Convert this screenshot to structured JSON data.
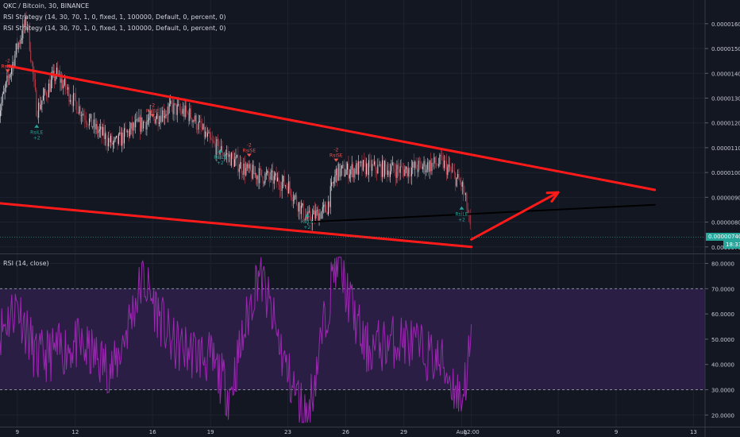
{
  "header": {
    "title": "QKC / Bitcoin, 30, BINANCE",
    "strategy_1": "RSI Strategy (14, 30, 70, 1, 0, fixed, 1, 100000, Default, 0, percent, 0)",
    "strategy_2": "RSI Strategy (14, 30, 70, 1, 0, fixed, 1, 100000, Default, 0, percent, 0)"
  },
  "price_axis": {
    "ticks": [
      "0.00001600",
      "0.00001500",
      "0.00001400",
      "0.00001300",
      "0.00001200",
      "0.00001100",
      "0.00001000",
      "0.00000900",
      "0.00000800",
      "0.00000700"
    ],
    "current_price": "0.00000740",
    "countdown": "18:33"
  },
  "rsi_panel": {
    "title": "RSI (14, close)",
    "ticks": [
      "80.0000",
      "70.0000",
      "60.0000",
      "50.0000",
      "40.0000",
      "30.0000",
      "20.0000"
    ]
  },
  "time_axis": {
    "ticks": [
      "9",
      "12",
      "16",
      "19",
      "23",
      "26",
      "29",
      "Aug",
      "12:00",
      "6",
      "9",
      "13"
    ]
  },
  "markers": {
    "short_label": "RsiSE",
    "long_label": "RsiLE",
    "short_qty": "-2",
    "long_qty": "+2"
  },
  "colors": {
    "background": "#131722",
    "candle_up": "#d9dbe0",
    "candle_down": "#c23b4a",
    "trendline": "#ff1a1a",
    "support_line": "#000000",
    "rsi_line": "#9b27b0",
    "rsi_band": "#2a1e45",
    "long_marker": "#26a69a",
    "short_marker": "#ef5350",
    "price_tag": "#26a69a"
  },
  "chart_data": [
    {
      "type": "candlestick",
      "title": "QKC / Bitcoin, 30, BINANCE",
      "y_unit": "BTC",
      "ylim": [
        6.8e-06,
        1.67e-05
      ],
      "x_range": [
        "Jul 8",
        "Aug 13"
      ],
      "price_path": [
        {
          "x": "Jul 8",
          "y": 1.23e-05
        },
        {
          "x": "Jul 9",
          "y": 1.51e-05
        },
        {
          "x": "Jul 9.5",
          "y": 1.62e-05
        },
        {
          "x": "Jul 10",
          "y": 1.25e-05
        },
        {
          "x": "Jul 11",
          "y": 1.4e-05
        },
        {
          "x": "Jul 12",
          "y": 1.28e-05
        },
        {
          "x": "Jul 13",
          "y": 1.18e-05
        },
        {
          "x": "Jul 14",
          "y": 1.11e-05
        },
        {
          "x": "Jul 15",
          "y": 1.18e-05
        },
        {
          "x": "Jul 17",
          "y": 1.26e-05
        },
        {
          "x": "Jul 18",
          "y": 1.23e-05
        },
        {
          "x": "Jul 19",
          "y": 1.12e-05
        },
        {
          "x": "Jul 21",
          "y": 1e-05
        },
        {
          "x": "Jul 22",
          "y": 9.8e-06
        },
        {
          "x": "Jul 23",
          "y": 9.5e-06
        },
        {
          "x": "Jul 24",
          "y": 8.1e-06
        },
        {
          "x": "Jul 25",
          "y": 8.5e-06
        },
        {
          "x": "Jul 25.5",
          "y": 1e-05
        },
        {
          "x": "Jul 27",
          "y": 1.02e-05
        },
        {
          "x": "Jul 29",
          "y": 1.01e-05
        },
        {
          "x": "Jul 31",
          "y": 1.04e-05
        },
        {
          "x": "Aug 1",
          "y": 9.5e-06
        },
        {
          "x": "Aug 1 06:00",
          "y": 8.7e-06
        },
        {
          "x": "Aug 1 12:00",
          "y": 7.4e-06
        }
      ],
      "annotations": [
        {
          "type": "trendline",
          "color": "red",
          "from": {
            "x": "Jul 8.5",
            "y": 1.43e-05
          },
          "to": {
            "x": "Aug 11",
            "y": 9.3e-06
          }
        },
        {
          "type": "trendline",
          "color": "red",
          "from": {
            "x": "Jul 7.5",
            "y": 8.8e-06
          },
          "to": {
            "x": "Aug 1 12:00",
            "y": 7e-06
          }
        },
        {
          "type": "trendline",
          "color": "black",
          "from": {
            "x": "Jul 24",
            "y": 8e-06
          },
          "to": {
            "x": "Aug 11",
            "y": 8.7e-06
          }
        },
        {
          "type": "arrow",
          "color": "red",
          "from": {
            "x": "Aug 1 12:00",
            "y": 7.3e-06
          },
          "to": {
            "x": "Aug 6",
            "y": 9.2e-06
          }
        }
      ],
      "signals": [
        {
          "type": "RsiSE",
          "qty": "-2",
          "x": "Jul 8.5",
          "price": 1.4e-05
        },
        {
          "type": "RsiLE",
          "qty": "+2",
          "x": "Jul 10",
          "price": 1.2e-05
        },
        {
          "type": "RsiSE",
          "qty": "-2",
          "x": "Jul 16",
          "price": 1.22e-05
        },
        {
          "type": "RsiLE",
          "qty": "+2",
          "x": "Jul 19.5",
          "price": 1.1e-05
        },
        {
          "type": "RsiSE",
          "qty": "-2",
          "x": "Jul 21",
          "price": 1.06e-05
        },
        {
          "type": "RsiLE",
          "qty": "+2",
          "x": "Jul 24",
          "price": 8.4e-06
        },
        {
          "type": "RsiSE",
          "qty": "-2",
          "x": "Jul 25.5",
          "price": 1.04e-05
        },
        {
          "type": "RsiLE",
          "qty": "+2",
          "x": "Aug 1",
          "price": 8.7e-06
        }
      ]
    },
    {
      "type": "line",
      "title": "RSI (14, close)",
      "ylim": [
        16,
        83
      ],
      "bands": [
        30,
        70
      ],
      "rsi_path": [
        {
          "x": "Jul 8",
          "y": 52
        },
        {
          "x": "Jul 9",
          "y": 64
        },
        {
          "x": "Jul 10",
          "y": 42
        },
        {
          "x": "Jul 12",
          "y": 48
        },
        {
          "x": "Jul 14",
          "y": 38
        },
        {
          "x": "Jul 15.5",
          "y": 74
        },
        {
          "x": "Jul 17",
          "y": 48
        },
        {
          "x": "Jul 19",
          "y": 42
        },
        {
          "x": "Jul 20",
          "y": 28
        },
        {
          "x": "Jul 21.5",
          "y": 78
        },
        {
          "x": "Jul 23",
          "y": 36
        },
        {
          "x": "Jul 24",
          "y": 18
        },
        {
          "x": "Jul 25.5",
          "y": 82
        },
        {
          "x": "Jul 27",
          "y": 46
        },
        {
          "x": "Jul 29",
          "y": 50
        },
        {
          "x": "Jul 31",
          "y": 40
        },
        {
          "x": "Aug 1",
          "y": 26
        },
        {
          "x": "Aug 1 12:00",
          "y": 48
        }
      ]
    }
  ]
}
